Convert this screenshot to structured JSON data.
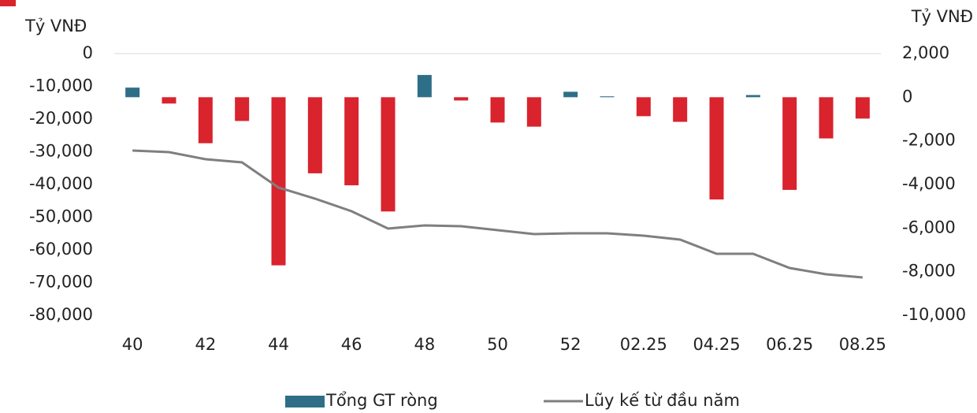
{
  "chart_data": {
    "type": "bar",
    "y_label": "Tỷ VNĐ",
    "y2_label": "Tỷ VNĐ",
    "categories": [
      "40",
      null,
      "42",
      null,
      "44",
      null,
      "46",
      null,
      "48",
      null,
      "50",
      null,
      "52",
      null,
      "02.25",
      null,
      "04.25",
      null,
      "06.25",
      null,
      "08.25"
    ],
    "series": [
      {
        "name": "Tổng GT ròng",
        "type": "bar",
        "axis": "y2",
        "color": "#2e6e87",
        "negative_color": "#d9232d",
        "values": [
          440,
          -290,
          -2110,
          -1090,
          -7710,
          -3490,
          -4040,
          -5240,
          1020,
          -150,
          -1160,
          -1350,
          250,
          40,
          -870,
          -1130,
          -4690,
          100,
          -4250,
          -1890,
          -980
        ]
      },
      {
        "name": "Lũy kế từ đầu năm",
        "type": "line",
        "color": "#7f7f7f",
        "values": [
          -29640,
          -30120,
          -32290,
          -33250,
          -40960,
          -44340,
          -48190,
          -53490,
          -52530,
          -52770,
          -53980,
          -55180,
          -54940,
          -54940,
          -55660,
          -56870,
          -61200,
          -61200,
          -65540,
          -67470,
          -68430
        ]
      }
    ],
    "ylim": [
      -80000,
      0
    ],
    "yticks": [
      0,
      {
        "value": -10000,
        "label": "-10,000"
      },
      {
        "value": -20000,
        "label": "-20,000"
      },
      {
        "value": -30000,
        "label": "-30,000"
      },
      {
        "value": -40000,
        "label": "-40,000"
      },
      {
        "value": -50000,
        "label": "-50,000"
      },
      {
        "value": -60000,
        "label": "-60,000"
      },
      {
        "value": -70000,
        "label": "-70,000"
      },
      {
        "value": -80000,
        "label": "-80,000"
      }
    ],
    "y2lim": [
      -10000,
      2000
    ],
    "y2ticks": [
      {
        "value": 2000,
        "label": "2,000"
      },
      0,
      {
        "value": -2000,
        "label": "-2,000"
      },
      {
        "value": -4000,
        "label": "-4,000"
      },
      {
        "value": -6000,
        "label": "-6,000"
      },
      {
        "value": -8000,
        "label": "-8,000"
      },
      {
        "value": -10000,
        "label": "-10,000"
      }
    ],
    "legend": "bottom"
  }
}
